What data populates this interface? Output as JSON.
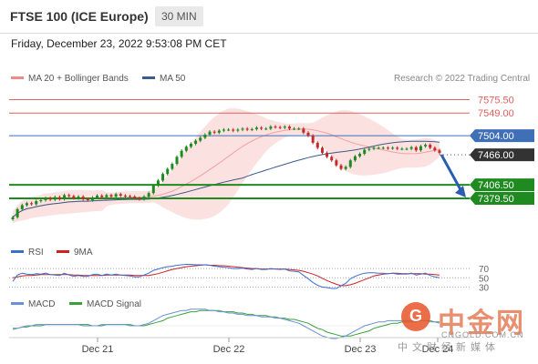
{
  "header": {
    "title": "FTSE 100 (ICE Europe)",
    "timeframe": "30 MIN"
  },
  "timestamp": "Friday, December 23, 2022 9:53:08 PM CET",
  "legend": {
    "bollinger": "MA 20 + Bollinger Bands",
    "ma50": "MA 50",
    "rsi": "RSI",
    "rsi_ma": "9MA",
    "macd": "MACD",
    "macd_signal": "MACD Signal"
  },
  "credit": "Research © 2022 Trading Central",
  "watermark": {
    "name": "中金网",
    "url": "CNGOLD.COM.CN",
    "sub": "中文财经新媒体"
  },
  "colors": {
    "resistance": "#e06060",
    "pivot": "#3f6fb7",
    "support": "#1f8a1f",
    "bollinger": "#f4a0a0",
    "ma50": "#3d5a8c",
    "rsi": "#3a6fcf",
    "rsi_ma": "#cc2222",
    "macd": "#6a8fd8",
    "macd_signal": "#3aa03a",
    "bull": "#1e8a1e",
    "bear": "#c62828"
  },
  "chart_data": {
    "type": "candlestick",
    "price_range": [
      7300,
      7600
    ],
    "x_labels": [
      "Dec 21",
      "Dec 22",
      "Dec 23",
      "Dec 24"
    ],
    "levels": [
      {
        "value": 7575.5,
        "label": "7575.50",
        "kind": "resistance"
      },
      {
        "value": 7549.0,
        "label": "7549.00",
        "kind": "resistance"
      },
      {
        "value": 7504.0,
        "label": "7504.00",
        "kind": "pivot"
      },
      {
        "value": 7466.0,
        "label": "7466.00",
        "kind": "current"
      },
      {
        "value": 7406.5,
        "label": "7406.50",
        "kind": "support"
      },
      {
        "value": 7379.5,
        "label": "7379.50",
        "kind": "support"
      }
    ],
    "close": [
      7342,
      7358,
      7366,
      7370,
      7368,
      7374,
      7376,
      7380,
      7377,
      7382,
      7378,
      7386,
      7384,
      7380,
      7383,
      7378,
      7376,
      7381,
      7385,
      7382,
      7386,
      7383,
      7388,
      7385,
      7384,
      7383,
      7380,
      7378,
      7383,
      7390,
      7405,
      7415,
      7428,
      7438,
      7448,
      7462,
      7474,
      7482,
      7488,
      7494,
      7500,
      7506,
      7512,
      7510,
      7514,
      7516,
      7516,
      7514,
      7516,
      7518,
      7516,
      7517,
      7520,
      7518,
      7518,
      7522,
      7521,
      7520,
      7522,
      7518,
      7518,
      7518,
      7510,
      7504,
      7490,
      7480,
      7470,
      7462,
      7455,
      7445,
      7438,
      7442,
      7455,
      7463,
      7468,
      7476,
      7478,
      7480,
      7480,
      7480,
      7479,
      7480,
      7478,
      7478,
      7478,
      7481,
      7475,
      7483,
      7486,
      7480,
      7475,
      7470
    ],
    "rsi_levels": [
      70,
      50,
      30
    ],
    "rsi": [
      42,
      56,
      60,
      58,
      57,
      59,
      58,
      60,
      57,
      56,
      55,
      60,
      56,
      53,
      55,
      53,
      53,
      57,
      58,
      55,
      58,
      56,
      58,
      56,
      55,
      54,
      52,
      52,
      56,
      60,
      66,
      69,
      72,
      74,
      75,
      77,
      78,
      79,
      79,
      78,
      78,
      78,
      77,
      75,
      74,
      73,
      72,
      70,
      70,
      71,
      69,
      68,
      70,
      68,
      68,
      70,
      69,
      68,
      69,
      65,
      64,
      63,
      55,
      48,
      40,
      34,
      30,
      29,
      27,
      27,
      33,
      38,
      48,
      53,
      57,
      60,
      61,
      61,
      60,
      60,
      59,
      60,
      58,
      58,
      58,
      60,
      56,
      58,
      60,
      55,
      52,
      50
    ],
    "rsi_ma": [
      50,
      52,
      54,
      55,
      55,
      56,
      57,
      57,
      57,
      57,
      57,
      57,
      57,
      56,
      56,
      55,
      55,
      55,
      55,
      55,
      56,
      56,
      56,
      56,
      56,
      56,
      55,
      55,
      55,
      55,
      57,
      59,
      62,
      65,
      68,
      70,
      72,
      74,
      75,
      76,
      77,
      78,
      77,
      77,
      76,
      76,
      75,
      74,
      73,
      72,
      71,
      70,
      70,
      69,
      69,
      69,
      69,
      69,
      69,
      68,
      67,
      66,
      64,
      61,
      58,
      54,
      49,
      44,
      40,
      36,
      33,
      33,
      35,
      38,
      42,
      46,
      50,
      54,
      56,
      58,
      59,
      60,
      60,
      59,
      59,
      59,
      59,
      59,
      58,
      58,
      57,
      56
    ],
    "macd": [
      -3,
      -2,
      -1,
      0,
      0,
      1,
      1,
      1,
      1,
      1,
      1,
      1,
      1,
      1,
      1,
      0,
      0,
      0,
      0,
      1,
      1,
      1,
      1,
      1,
      1,
      0,
      0,
      0,
      1,
      2,
      4,
      6,
      8,
      9,
      10,
      11,
      12,
      12,
      13,
      13,
      13,
      13,
      12,
      12,
      11,
      11,
      10,
      10,
      9,
      9,
      8,
      8,
      8,
      7,
      7,
      7,
      6,
      6,
      5,
      4,
      3,
      2,
      0,
      -2,
      -4,
      -6,
      -8,
      -9,
      -10,
      -10,
      -9,
      -8,
      -6,
      -4,
      -2,
      0,
      1,
      2,
      3,
      3,
      4,
      4,
      4,
      4,
      4,
      4,
      4,
      4,
      4,
      3,
      3,
      2
    ],
    "macd_signal": [
      -2,
      -2,
      -1,
      -1,
      0,
      0,
      0,
      1,
      1,
      1,
      1,
      1,
      1,
      1,
      1,
      1,
      1,
      0,
      0,
      0,
      1,
      1,
      1,
      1,
      1,
      1,
      0,
      0,
      0,
      1,
      2,
      3,
      4,
      6,
      7,
      8,
      9,
      10,
      11,
      11,
      12,
      12,
      12,
      12,
      12,
      11,
      11,
      11,
      10,
      10,
      9,
      9,
      8,
      8,
      8,
      7,
      7,
      6,
      6,
      5,
      5,
      4,
      3,
      2,
      0,
      -2,
      -3,
      -5,
      -6,
      -7,
      -8,
      -8,
      -8,
      -7,
      -6,
      -5,
      -4,
      -2,
      -1,
      0,
      1,
      2,
      2,
      3,
      3,
      3,
      3,
      4,
      4,
      4,
      3,
      3
    ]
  }
}
